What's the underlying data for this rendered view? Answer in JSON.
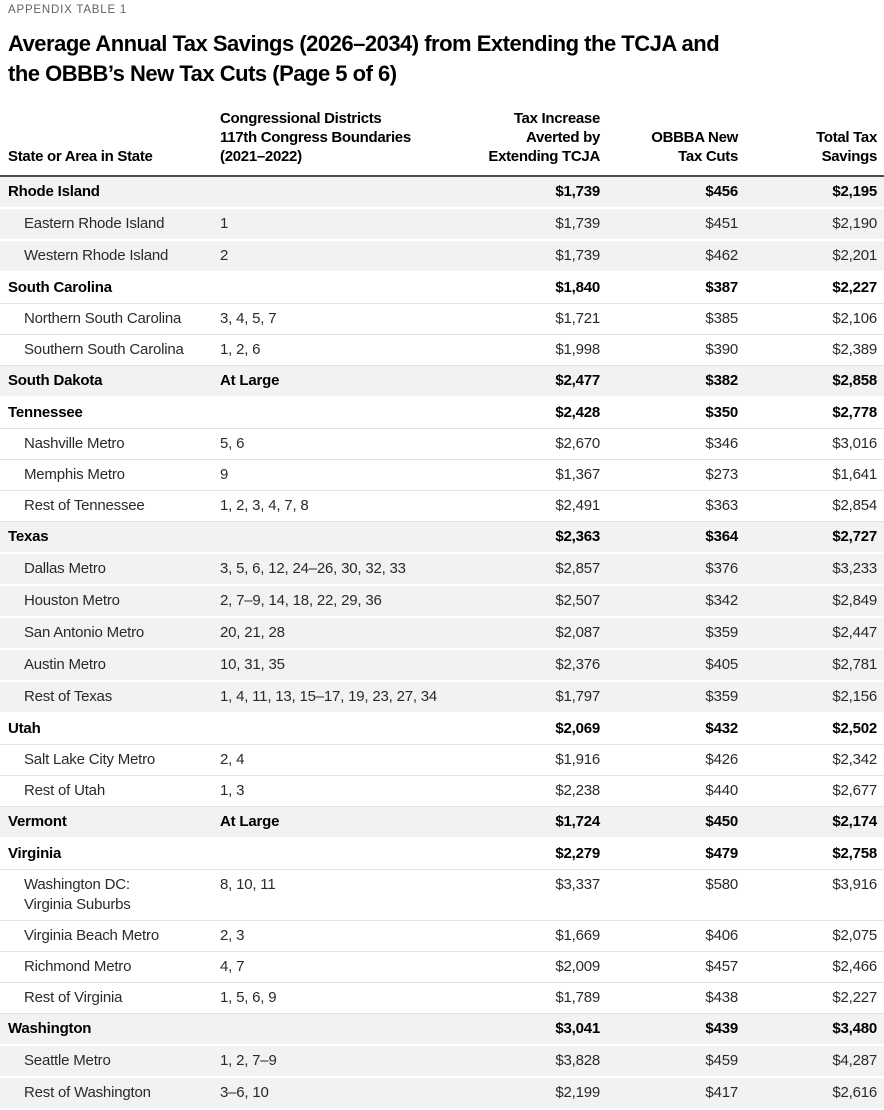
{
  "page": {
    "appendix_label": "APPENDIX TABLE 1",
    "title_line1": "Average Annual Tax Savings (2026–2034) from Extending the TCJA and",
    "title_line2": "the OBBB’s New Tax Cuts (Page 5 of 6)"
  },
  "table": {
    "headers": {
      "name": "State or Area in State",
      "districts": "Congressional Districts\n117th Congress Boundaries\n(2021–2022)",
      "tcja": "Tax Increase\nAverted by\nExtending TCJA",
      "obbba": "OBBBA New\nTax Cuts",
      "total": "Total Tax\nSavings"
    },
    "rows": [
      {
        "type": "state",
        "shade": "gray",
        "name": "Rhode Island",
        "districts": "",
        "tcja": "$1,739",
        "obbba": "$456",
        "total": "$2,195"
      },
      {
        "type": "area",
        "shade": "gray",
        "name": "Eastern Rhode Island",
        "districts": "1",
        "tcja": "$1,739",
        "obbba": "$451",
        "total": "$2,190"
      },
      {
        "type": "area",
        "shade": "gray",
        "name": "Western Rhode Island",
        "districts": "2",
        "tcja": "$1,739",
        "obbba": "$462",
        "total": "$2,201"
      },
      {
        "type": "state",
        "shade": "white",
        "name": "South Carolina",
        "districts": "",
        "tcja": "$1,840",
        "obbba": "$387",
        "total": "$2,227"
      },
      {
        "type": "area",
        "shade": "white",
        "name": "Northern South Carolina",
        "districts": "3, 4, 5, 7",
        "tcja": "$1,721",
        "obbba": "$385",
        "total": "$2,106"
      },
      {
        "type": "area",
        "shade": "white",
        "name": "Southern South Carolina",
        "districts": "1, 2, 6",
        "tcja": "$1,998",
        "obbba": "$390",
        "total": "$2,389"
      },
      {
        "type": "state",
        "shade": "gray",
        "name": "South Dakota",
        "districts": "At Large",
        "tcja": "$2,477",
        "obbba": "$382",
        "total": "$2,858"
      },
      {
        "type": "state",
        "shade": "white",
        "name": "Tennessee",
        "districts": "",
        "tcja": "$2,428",
        "obbba": "$350",
        "total": "$2,778"
      },
      {
        "type": "area",
        "shade": "white",
        "name": "Nashville Metro",
        "districts": "5, 6",
        "tcja": "$2,670",
        "obbba": "$346",
        "total": "$3,016"
      },
      {
        "type": "area",
        "shade": "white",
        "name": "Memphis Metro",
        "districts": "9",
        "tcja": "$1,367",
        "obbba": "$273",
        "total": "$1,641"
      },
      {
        "type": "area",
        "shade": "white",
        "name": "Rest of Tennessee",
        "districts": "1, 2, 3, 4, 7, 8",
        "tcja": "$2,491",
        "obbba": "$363",
        "total": "$2,854"
      },
      {
        "type": "state",
        "shade": "gray",
        "name": "Texas",
        "districts": "",
        "tcja": "$2,363",
        "obbba": "$364",
        "total": "$2,727"
      },
      {
        "type": "area",
        "shade": "gray",
        "name": "Dallas Metro",
        "districts": "3, 5, 6, 12, 24–26, 30, 32, 33",
        "tcja": "$2,857",
        "obbba": "$376",
        "total": "$3,233"
      },
      {
        "type": "area",
        "shade": "gray",
        "name": "Houston Metro",
        "districts": "2, 7–9, 14, 18, 22, 29, 36",
        "tcja": "$2,507",
        "obbba": "$342",
        "total": "$2,849"
      },
      {
        "type": "area",
        "shade": "gray",
        "name": "San Antonio Metro",
        "districts": "20, 21, 28",
        "tcja": "$2,087",
        "obbba": "$359",
        "total": "$2,447"
      },
      {
        "type": "area",
        "shade": "gray",
        "name": "Austin Metro",
        "districts": "10, 31, 35",
        "tcja": "$2,376",
        "obbba": "$405",
        "total": "$2,781"
      },
      {
        "type": "area",
        "shade": "gray",
        "name": "Rest of Texas",
        "districts": "1, 4, 11, 13, 15–17, 19, 23, 27, 34",
        "tcja": "$1,797",
        "obbba": "$359",
        "total": "$2,156"
      },
      {
        "type": "state",
        "shade": "white",
        "name": "Utah",
        "districts": "",
        "tcja": "$2,069",
        "obbba": "$432",
        "total": "$2,502"
      },
      {
        "type": "area",
        "shade": "white",
        "name": "Salt Lake City Metro",
        "districts": "2, 4",
        "tcja": "$1,916",
        "obbba": "$426",
        "total": "$2,342"
      },
      {
        "type": "area",
        "shade": "white",
        "name": "Rest of Utah",
        "districts": "1, 3",
        "tcja": "$2,238",
        "obbba": "$440",
        "total": "$2,677"
      },
      {
        "type": "state",
        "shade": "gray",
        "name": "Vermont",
        "districts": "At Large",
        "tcja": "$1,724",
        "obbba": "$450",
        "total": "$2,174"
      },
      {
        "type": "state",
        "shade": "white",
        "name": "Virginia",
        "districts": "",
        "tcja": "$2,279",
        "obbba": "$479",
        "total": "$2,758"
      },
      {
        "type": "area",
        "shade": "white",
        "name": "Washington DC:\nVirginia Suburbs",
        "districts": "8, 10, 11",
        "tcja": "$3,337",
        "obbba": "$580",
        "total": "$3,916"
      },
      {
        "type": "area",
        "shade": "white",
        "name": "Virginia Beach Metro",
        "districts": "2, 3",
        "tcja": "$1,669",
        "obbba": "$406",
        "total": "$2,075"
      },
      {
        "type": "area",
        "shade": "white",
        "name": "Richmond Metro",
        "districts": "4, 7",
        "tcja": "$2,009",
        "obbba": "$457",
        "total": "$2,466"
      },
      {
        "type": "area",
        "shade": "white",
        "name": "Rest of Virginia",
        "districts": "1, 5, 6, 9",
        "tcja": "$1,789",
        "obbba": "$438",
        "total": "$2,227"
      },
      {
        "type": "state",
        "shade": "gray",
        "name": "Washington",
        "districts": "",
        "tcja": "$3,041",
        "obbba": "$439",
        "total": "$3,480"
      },
      {
        "type": "area",
        "shade": "gray",
        "name": "Seattle Metro",
        "districts": "1, 2, 7–9",
        "tcja": "$3,828",
        "obbba": "$459",
        "total": "$4,287"
      },
      {
        "type": "area",
        "shade": "gray",
        "name": "Rest of Washington",
        "districts": "3–6, 10",
        "tcja": "$2,199",
        "obbba": "$417",
        "total": "$2,616"
      }
    ]
  },
  "colors": {
    "row_shade_gray": "#f2f2f2",
    "row_hairline": "#e2e2e2",
    "header_rule": "#4d4d4d",
    "label_gray": "#5f6166",
    "text_black": "#000000"
  }
}
